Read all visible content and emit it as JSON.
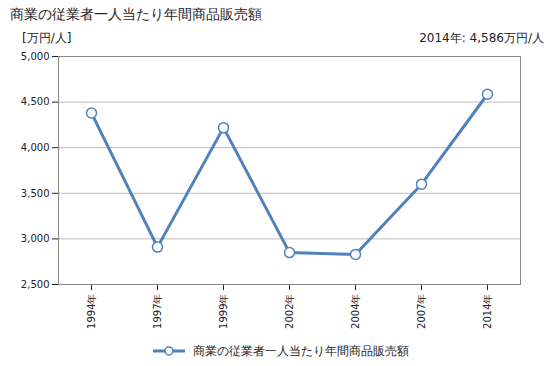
{
  "chart_data": {
    "type": "line",
    "title": "商業の従業者一人当たり年間商品販売額",
    "ylabel": "[万円/人]",
    "annotations": [
      "2014年: 4,586万円/人"
    ],
    "categories": [
      "1994年",
      "1997年",
      "1999年",
      "2002年",
      "2004年",
      "2007年",
      "2014年"
    ],
    "series": [
      {
        "name": "商業の従業者一人当たり年間商品販売額",
        "color": "#4f81bd",
        "marker": "circle",
        "values": [
          4380,
          2910,
          4220,
          2850,
          2830,
          3600,
          4586
        ]
      }
    ],
    "ylim": [
      2500,
      5000
    ],
    "yticks": [
      {
        "value": 2500,
        "label": "2,500"
      },
      {
        "value": 3000,
        "label": "3,000"
      },
      {
        "value": 3500,
        "label": "3,500"
      },
      {
        "value": 4000,
        "label": "4,000"
      },
      {
        "value": 4500,
        "label": "4,500"
      },
      {
        "value": 5000,
        "label": "5,000"
      }
    ],
    "grid": true,
    "legend": "bottom"
  }
}
